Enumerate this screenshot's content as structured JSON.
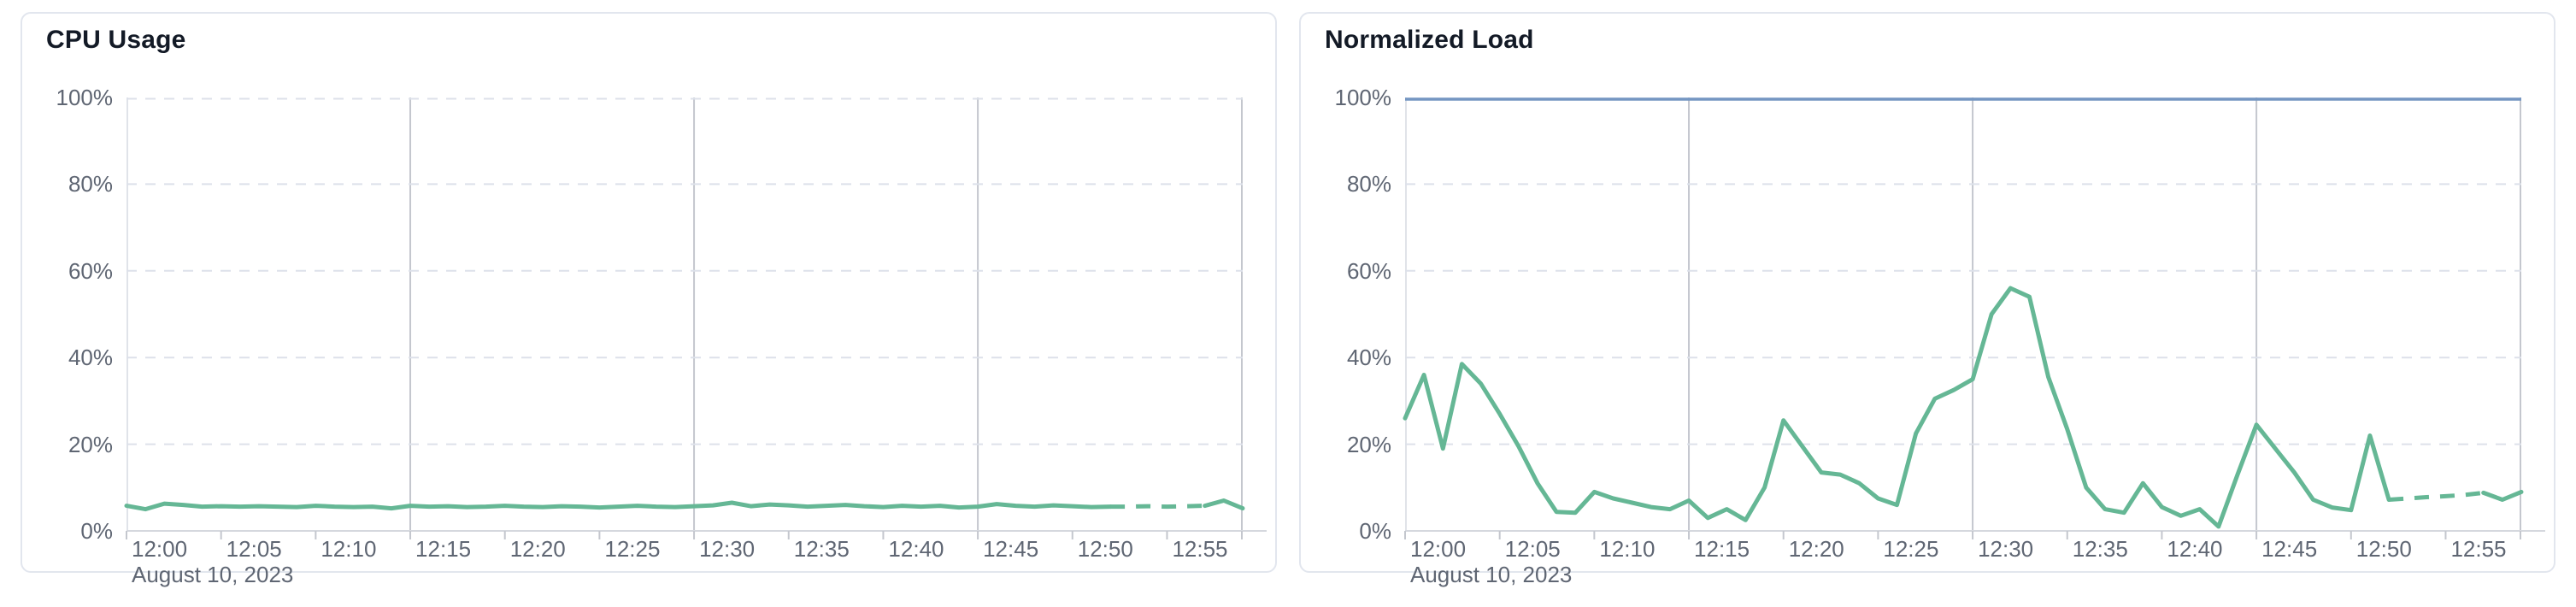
{
  "page": {
    "background": "#ffffff"
  },
  "theme": {
    "card_bg": "#ffffff",
    "card_border": "#e2e6ee",
    "title_color": "#131a26",
    "axis_label_color": "#5f6673",
    "grid_dashed_color": "#dde1ea",
    "grid_major_color": "#c4c7ce",
    "grid_edge_color": "#e0e3e9",
    "axis_line_color": "#d5d8de",
    "tick_color": "#c4c7ce",
    "series_color": "#65b795",
    "limit_line_color": "#7496c2"
  },
  "chart_data": [
    {
      "type": "line",
      "title": "CPU Usage",
      "unit": "%",
      "ylim": [
        0,
        100
      ],
      "y_ticks": [
        100,
        80,
        60,
        40,
        20,
        0
      ],
      "y_tick_labels": [
        "100%",
        "80%",
        "60%",
        "40%",
        "20%",
        "0%"
      ],
      "x_tick_labels": [
        "12:00",
        "12:05",
        "12:10",
        "12:15",
        "12:20",
        "12:25",
        "12:30",
        "12:35",
        "12:40",
        "12:45",
        "12:50",
        "12:55"
      ],
      "date_label": "August 10, 2023",
      "x_start": "12:00",
      "minutes_per_point": 1,
      "grid": "on",
      "legend": "none",
      "top_boundary": "dashed-gridline",
      "dashed_segment": [
        52,
        57
      ],
      "values": [
        5.8,
        5.0,
        6.3,
        6.0,
        5.6,
        5.7,
        5.6,
        5.7,
        5.6,
        5.5,
        5.8,
        5.6,
        5.5,
        5.6,
        5.2,
        5.8,
        5.6,
        5.7,
        5.5,
        5.6,
        5.8,
        5.6,
        5.5,
        5.7,
        5.6,
        5.4,
        5.6,
        5.8,
        5.6,
        5.5,
        5.7,
        5.9,
        6.5,
        5.7,
        6.1,
        5.9,
        5.6,
        5.8,
        6.0,
        5.7,
        5.5,
        5.8,
        5.6,
        5.8,
        5.4,
        5.6,
        6.2,
        5.8,
        5.6,
        5.9,
        5.7,
        5.5,
        5.6,
        5.6,
        5.7,
        5.6,
        5.7,
        5.8,
        7.0,
        5.2
      ]
    },
    {
      "type": "line",
      "title": "Normalized Load",
      "unit": "%",
      "ylim": [
        0,
        100
      ],
      "y_ticks": [
        100,
        80,
        60,
        40,
        20,
        0
      ],
      "y_tick_labels": [
        "100%",
        "80%",
        "60%",
        "40%",
        "20%",
        "0%"
      ],
      "x_tick_labels": [
        "12:00",
        "12:05",
        "12:10",
        "12:15",
        "12:20",
        "12:25",
        "12:30",
        "12:35",
        "12:40",
        "12:45",
        "12:50",
        "12:55"
      ],
      "date_label": "August 10, 2023",
      "x_start": "12:00",
      "minutes_per_point": 1,
      "grid": "on",
      "legend": "none",
      "top_boundary": "solid-limit-line-100pct",
      "dashed_segment": [
        52,
        57
      ],
      "values": [
        26,
        36,
        19,
        38.5,
        34,
        27,
        19.5,
        11,
        4.4,
        4.2,
        9,
        7.5,
        6.5,
        5.5,
        5,
        7,
        3,
        5,
        2.5,
        10,
        25.5,
        19.5,
        13.5,
        13,
        11,
        7.5,
        6,
        22.5,
        30.5,
        32.5,
        35,
        50,
        56,
        54,
        35.5,
        23.5,
        10,
        5,
        4.2,
        11,
        5.5,
        3.5,
        5,
        1,
        13,
        24.5,
        19,
        13.5,
        7.2,
        5.4,
        4.8,
        22,
        7.2,
        7.5,
        7.8,
        8,
        8.3,
        8.8,
        7.2,
        9
      ]
    }
  ]
}
